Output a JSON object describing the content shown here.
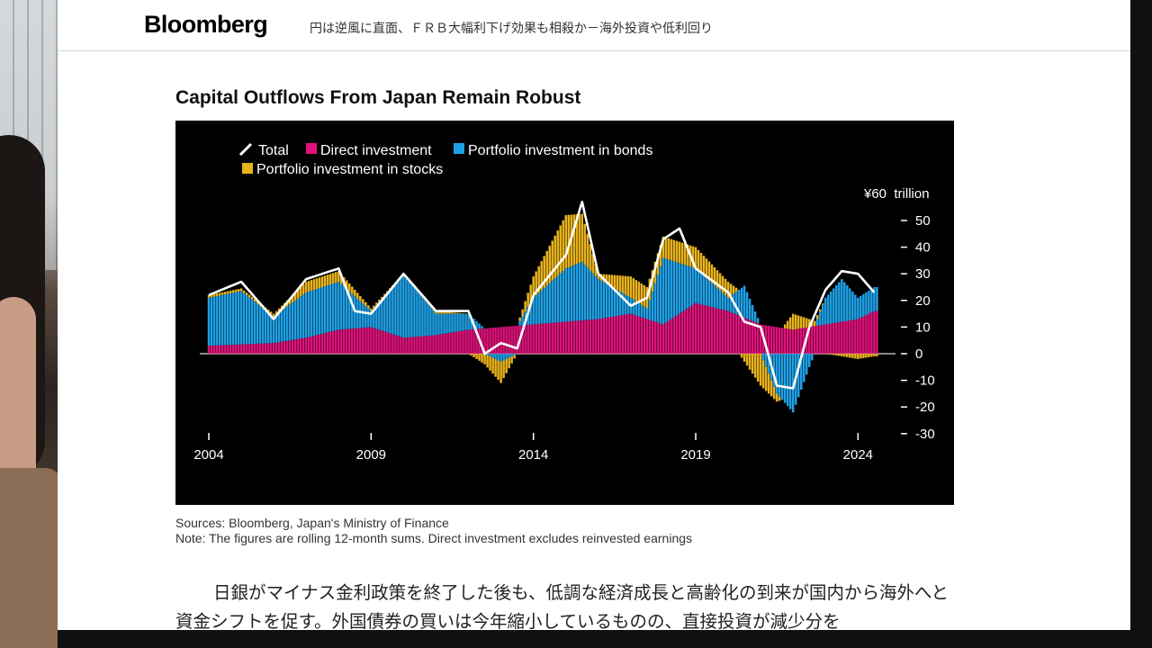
{
  "header": {
    "brand": "Bloomberg",
    "headline": "円は逆風に直面、ＦＲＢ大幅利下げ効果も相殺か－海外投資や低利回り"
  },
  "article": {
    "paragraph": "日銀がマイナス金利政策を終了した後も、低調な経済成長と高齢化の到来が国内から海外へと資金シフトを促す。外国債券の買いは今年縮小しているものの、直接投資が減少分を"
  },
  "colors": {
    "total": "#ffffff",
    "direct": "#e0117a",
    "bonds": "#1ea0e6",
    "stocks": "#e8b21c",
    "background": "#000000"
  },
  "chart_data": {
    "type": "bar",
    "stacked": true,
    "title": "Capital Outflows From Japan Remain Robust",
    "y_unit_label": "¥60  trillion",
    "ylim": [
      -30,
      60
    ],
    "y_ticks": [
      60,
      50,
      40,
      30,
      20,
      10,
      0,
      -10,
      -20,
      -30
    ],
    "y_tick_labels": [
      "",
      "50",
      "40",
      "30",
      "20",
      "10",
      "0",
      "-10",
      "-20",
      "-30"
    ],
    "x_ticks": [
      2004,
      2009,
      2014,
      2019,
      2024
    ],
    "x_tick_labels": [
      "2004",
      "2009",
      "2014",
      "2019",
      "2024"
    ],
    "xlim": [
      2004,
      2024.6
    ],
    "legend": [
      "Total",
      "Direct investment",
      "Portfolio investment in bonds",
      "Portfolio investment in stocks"
    ],
    "sources": "Sources: Bloomberg, Japan's Ministry of Finance",
    "note": "Note: The figures are rolling 12-month sums. Direct investment excludes reinvested earnings",
    "series": [
      {
        "name": "Direct investment",
        "t": [
          2004,
          2006,
          2007,
          2008,
          2009,
          2010,
          2011,
          2012,
          2013,
          2014,
          2015,
          2016,
          2017,
          2018,
          2019,
          2020,
          2021,
          2022,
          2023,
          2024,
          2024.5
        ],
        "v": [
          3,
          4,
          6,
          9,
          10,
          6,
          7,
          9,
          10,
          11,
          12,
          13,
          15,
          11,
          19,
          16,
          11,
          9,
          11,
          13,
          16
        ]
      },
      {
        "name": "Portfolio investment in bonds",
        "t": [
          2004,
          2005,
          2006,
          2007,
          2008,
          2009,
          2010,
          2011,
          2012,
          2012.5,
          2013,
          2013.5,
          2014,
          2015,
          2015.5,
          2016,
          2017,
          2017.5,
          2018,
          2019,
          2020,
          2020.5,
          2021,
          2021.5,
          2022,
          2022.5,
          2023,
          2023.5,
          2024,
          2024.5
        ],
        "v": [
          18,
          20,
          10,
          17,
          18,
          6,
          24,
          8,
          6,
          0,
          -3,
          0,
          10,
          20,
          22,
          15,
          6,
          4,
          25,
          13,
          5,
          12,
          0,
          -15,
          -22,
          -5,
          10,
          16,
          8,
          9
        ]
      },
      {
        "name": "Portfolio investment in stocks",
        "t": [
          2004,
          2006,
          2007,
          2008,
          2009,
          2010,
          2011,
          2012,
          2013,
          2014,
          2015,
          2015.5,
          2016,
          2017,
          2018,
          2019,
          2020,
          2021,
          2022,
          2023,
          2024,
          2024.5
        ],
        "v": [
          1,
          1,
          4,
          4,
          1,
          0,
          1,
          0,
          -8,
          8,
          20,
          18,
          2,
          8,
          8,
          8,
          6,
          -12,
          6,
          0,
          -2,
          -1
        ]
      },
      {
        "name": "Total",
        "t": [
          2004,
          2005,
          2006,
          2007,
          2007.5,
          2008,
          2008.5,
          2009,
          2010,
          2011,
          2012,
          2012.5,
          2013,
          2013.5,
          2014,
          2015,
          2015.5,
          2016,
          2017,
          2017.5,
          2018,
          2018.5,
          2019,
          2020,
          2020.5,
          2021,
          2021.5,
          2022,
          2022.5,
          2023,
          2023.5,
          2024,
          2024.5
        ],
        "v": [
          22,
          27,
          13,
          28,
          30,
          32,
          16,
          15,
          30,
          16,
          16,
          0,
          4,
          2,
          22,
          37,
          57,
          30,
          18,
          21,
          43,
          47,
          32,
          23,
          12,
          10,
          -12,
          -13,
          10,
          24,
          31,
          30,
          23
        ]
      }
    ]
  }
}
